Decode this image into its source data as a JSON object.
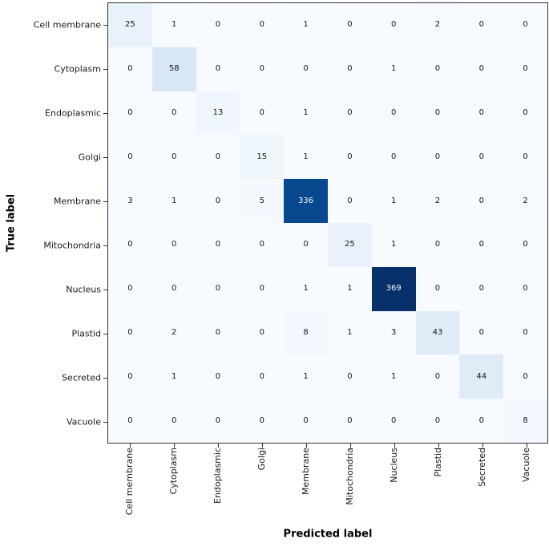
{
  "figure": {
    "background": "#ffffff"
  },
  "chart_data": {
    "type": "heatmap",
    "subtype": "confusion-matrix",
    "title": "",
    "xlabel": "Predicted label",
    "ylabel": "True label",
    "categories": [
      "Cell membrane",
      "Cytoplasm",
      "Endoplasmic",
      "Golgi",
      "Membrane",
      "Mitochondria",
      "Nucleus",
      "Plastid",
      "Secreted",
      "Vacuole"
    ],
    "matrix": [
      [
        25,
        1,
        0,
        0,
        1,
        0,
        0,
        2,
        0,
        0
      ],
      [
        0,
        58,
        0,
        0,
        0,
        0,
        1,
        0,
        0,
        0
      ],
      [
        0,
        0,
        13,
        0,
        1,
        0,
        0,
        0,
        0,
        0
      ],
      [
        0,
        0,
        0,
        15,
        1,
        0,
        0,
        0,
        0,
        0
      ],
      [
        3,
        1,
        0,
        5,
        336,
        0,
        1,
        2,
        0,
        2
      ],
      [
        0,
        0,
        0,
        0,
        0,
        25,
        1,
        0,
        0,
        0
      ],
      [
        0,
        0,
        0,
        0,
        1,
        1,
        369,
        0,
        0,
        0
      ],
      [
        0,
        2,
        0,
        0,
        8,
        1,
        3,
        43,
        0,
        0
      ],
      [
        0,
        1,
        0,
        0,
        1,
        0,
        1,
        0,
        44,
        0
      ],
      [
        0,
        0,
        0,
        0,
        0,
        0,
        0,
        0,
        0,
        8
      ]
    ],
    "vmin": 0,
    "vmax": 369,
    "colormap": {
      "name": "Blues",
      "stops": [
        [
          0.0,
          "#f7fbff"
        ],
        [
          0.125,
          "#deebf7"
        ],
        [
          0.25,
          "#c6dbef"
        ],
        [
          0.375,
          "#9ecae1"
        ],
        [
          0.5,
          "#6baed6"
        ],
        [
          0.625,
          "#4292c6"
        ],
        [
          0.75,
          "#2171b5"
        ],
        [
          0.875,
          "#08519c"
        ],
        [
          1.0,
          "#08306b"
        ]
      ]
    },
    "cell_text_color_low": "#15181d",
    "cell_text_color_high": "#f7fbff",
    "axis_color": "#333333",
    "tick_label_color": "#1a1a1a",
    "grid": false,
    "legend": "none"
  }
}
